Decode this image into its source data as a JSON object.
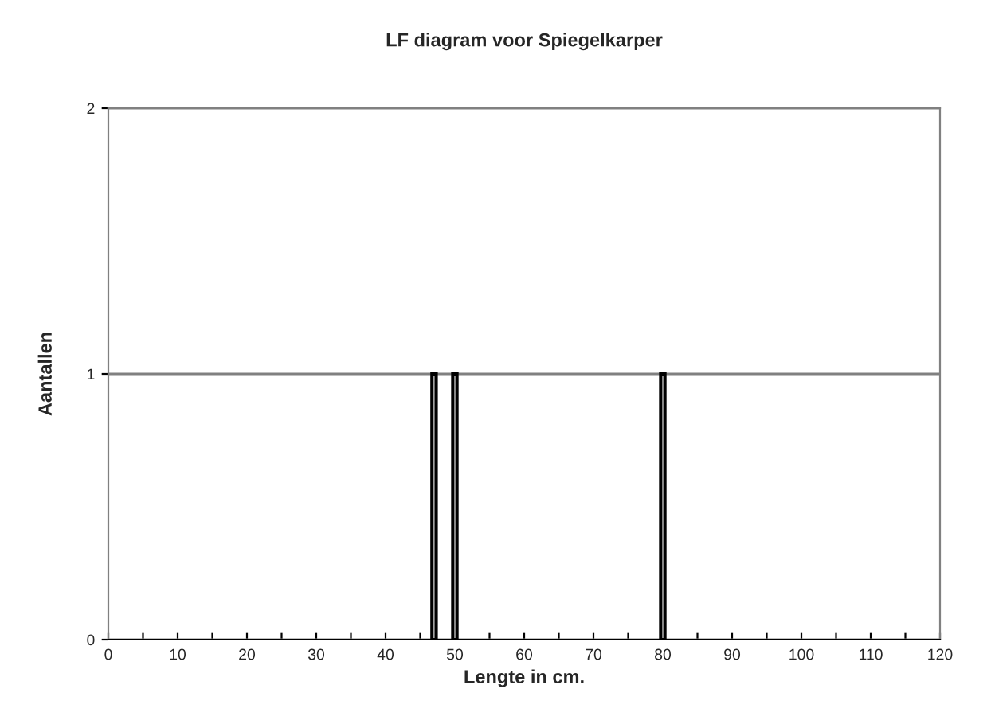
{
  "chart_data": {
    "type": "bar",
    "title": "LF diagram voor Spiegelkarper",
    "xlabel": "Lengte in cm.",
    "ylabel": "Aantallen",
    "x": [
      47,
      50,
      80
    ],
    "values": [
      1,
      1,
      1
    ],
    "color": "#000000",
    "xlim": [
      0,
      120
    ],
    "xticks": [
      0,
      {
        "value": 5,
        "label": null
      },
      10,
      {
        "value": 15,
        "label": null
      },
      20,
      {
        "value": 25,
        "label": null
      },
      30,
      {
        "value": 35,
        "label": null
      },
      40,
      {
        "value": 45,
        "label": null
      },
      50,
      {
        "value": 55,
        "label": null
      },
      60,
      {
        "value": 65,
        "label": null
      },
      70,
      {
        "value": 75,
        "label": null
      },
      80,
      {
        "value": 85,
        "label": null
      },
      90,
      {
        "value": 95,
        "label": null
      },
      100,
      {
        "value": 105,
        "label": null
      },
      110,
      {
        "value": 115,
        "label": null
      },
      120
    ],
    "ylim": [
      0,
      2
    ],
    "yticks": [
      0,
      1,
      2
    ],
    "grid": "y"
  }
}
